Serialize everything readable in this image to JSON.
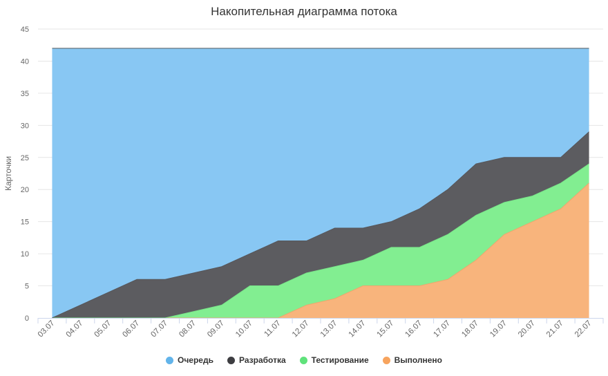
{
  "chart_data": {
    "type": "area",
    "stacked": true,
    "title": "Накопительная диаграмма потока",
    "ylabel": "Карточки",
    "ylim": [
      0,
      45
    ],
    "yticks": [
      0,
      5,
      10,
      15,
      20,
      25,
      30,
      35,
      40,
      45
    ],
    "grid": true,
    "legend_position": "bottom",
    "categories": [
      "03.07",
      "04.07",
      "05.07",
      "06.07",
      "07.07",
      "08.07",
      "09.07",
      "10.07",
      "11.07",
      "12.07",
      "13.07",
      "14.07",
      "15.07",
      "16.07",
      "17.07",
      "18.07",
      "19.07",
      "20.07",
      "21.07",
      "22.07"
    ],
    "series": [
      {
        "name": "Очередь",
        "color": "#62b4ea",
        "fill": "#88c7f3",
        "line": "#55595e",
        "values": [
          42,
          40,
          38,
          36,
          36,
          35,
          34,
          32,
          30,
          30,
          28,
          28,
          27,
          25,
          22,
          18,
          17,
          17,
          17,
          13
        ]
      },
      {
        "name": "Разработка",
        "color": "#3d3d41",
        "fill": "#5c5c60",
        "line": "#56565a",
        "values": [
          0,
          2,
          4,
          6,
          6,
          6,
          6,
          5,
          7,
          5,
          6,
          5,
          4,
          6,
          7,
          8,
          7,
          6,
          4,
          5
        ]
      },
      {
        "name": "Тестирование",
        "color": "#5fe27b",
        "fill": "#82ee91",
        "line": "#78e488",
        "values": [
          0,
          0,
          0,
          0,
          0,
          1,
          2,
          5,
          5,
          5,
          5,
          4,
          6,
          6,
          7,
          7,
          5,
          4,
          4,
          3
        ]
      },
      {
        "name": "Выполнено",
        "color": "#f7a45e",
        "fill": "#f8b47c",
        "line": "#efa66c",
        "values": [
          0,
          0,
          0,
          0,
          0,
          0,
          0,
          0,
          0,
          2,
          3,
          5,
          5,
          5,
          6,
          9,
          13,
          15,
          17,
          21
        ]
      }
    ]
  }
}
